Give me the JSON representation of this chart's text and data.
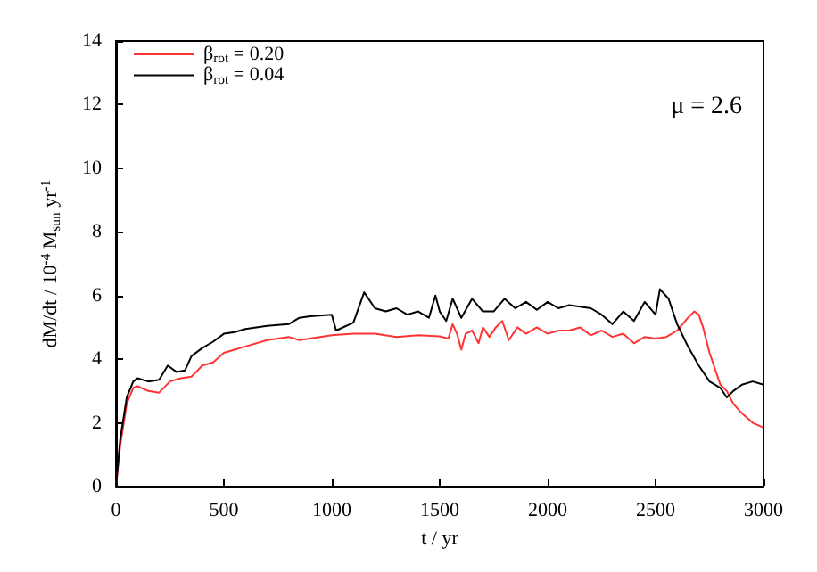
{
  "chart_data": {
    "type": "line",
    "xlabel": "t / yr",
    "ylabel": "dM/dt / 10$^{-4}$ M$_{sun}$ yr$^{-1}$",
    "annotations": [
      "μ = 2.6"
    ],
    "xlim": [
      0,
      3000
    ],
    "ylim": [
      0,
      14
    ],
    "xticks": [
      0,
      500,
      1000,
      1500,
      2000,
      2500,
      3000
    ],
    "yticks": [
      0,
      2,
      4,
      6,
      8,
      10,
      12,
      14
    ],
    "grid": false,
    "legend": "top left",
    "marker": "none",
    "line_style": "solid",
    "series": [
      {
        "name": "β$_{rot}$ = 0.20",
        "color": "#ff3333",
        "x": [
          0,
          20,
          50,
          80,
          100,
          150,
          200,
          250,
          300,
          350,
          400,
          450,
          500,
          600,
          700,
          800,
          850,
          1000,
          1100,
          1200,
          1300,
          1400,
          1500,
          1540,
          1560,
          1580,
          1600,
          1620,
          1650,
          1680,
          1700,
          1730,
          1760,
          1790,
          1820,
          1860,
          1900,
          1950,
          2000,
          2050,
          2100,
          2150,
          2200,
          2250,
          2300,
          2350,
          2400,
          2450,
          2500,
          2550,
          2600,
          2650,
          2680,
          2700,
          2720,
          2750,
          2800,
          2830,
          2860,
          2900,
          2950,
          3000
        ],
        "values": [
          0,
          1.3,
          2.6,
          3.1,
          3.15,
          3.0,
          2.95,
          3.3,
          3.4,
          3.45,
          3.8,
          3.9,
          4.2,
          4.4,
          4.6,
          4.7,
          4.6,
          4.75,
          4.8,
          4.8,
          4.7,
          4.75,
          4.72,
          4.65,
          5.1,
          4.8,
          4.3,
          4.8,
          4.9,
          4.5,
          5.0,
          4.7,
          5.0,
          5.2,
          4.6,
          5.0,
          4.8,
          5.0,
          4.8,
          4.9,
          4.9,
          5.0,
          4.75,
          4.9,
          4.7,
          4.8,
          4.5,
          4.7,
          4.65,
          4.7,
          4.9,
          5.3,
          5.5,
          5.4,
          5.0,
          4.2,
          3.2,
          3.0,
          2.6,
          2.3,
          2.0,
          1.85
        ]
      },
      {
        "name": "β$_{rot}$ = 0.04",
        "color": "#000000",
        "x": [
          0,
          20,
          50,
          80,
          100,
          150,
          200,
          240,
          280,
          320,
          350,
          400,
          450,
          500,
          550,
          600,
          700,
          800,
          850,
          900,
          1000,
          1020,
          1100,
          1150,
          1200,
          1250,
          1300,
          1350,
          1400,
          1450,
          1480,
          1500,
          1530,
          1560,
          1600,
          1650,
          1700,
          1750,
          1800,
          1850,
          1900,
          1950,
          2000,
          2050,
          2100,
          2200,
          2250,
          2300,
          2350,
          2400,
          2450,
          2500,
          2520,
          2560,
          2600,
          2650,
          2700,
          2750,
          2800,
          2830,
          2860,
          2900,
          2950,
          3000
        ],
        "values": [
          0,
          1.5,
          2.8,
          3.3,
          3.4,
          3.3,
          3.35,
          3.8,
          3.6,
          3.65,
          4.1,
          4.35,
          4.55,
          4.8,
          4.85,
          4.95,
          5.05,
          5.1,
          5.3,
          5.35,
          5.4,
          4.9,
          5.15,
          6.1,
          5.6,
          5.5,
          5.6,
          5.4,
          5.5,
          5.3,
          6.0,
          5.5,
          5.2,
          5.9,
          5.3,
          5.9,
          5.5,
          5.5,
          5.9,
          5.6,
          5.8,
          5.55,
          5.8,
          5.6,
          5.7,
          5.6,
          5.4,
          5.1,
          5.5,
          5.2,
          5.8,
          5.4,
          6.2,
          5.9,
          5.1,
          4.4,
          3.8,
          3.3,
          3.1,
          2.8,
          3.0,
          3.2,
          3.3,
          3.2
        ]
      }
    ]
  }
}
